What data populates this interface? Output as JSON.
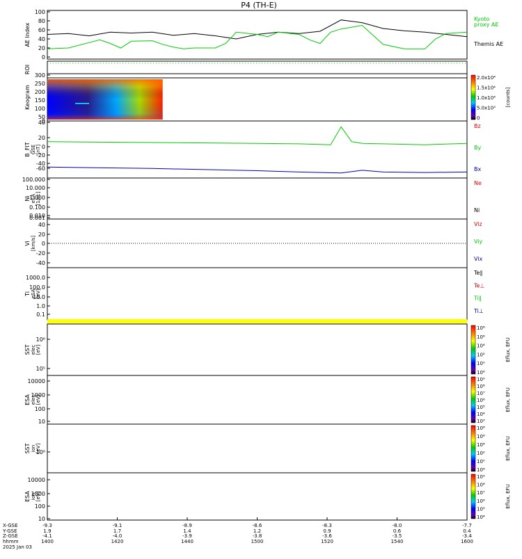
{
  "title": "P4 (TH-E)",
  "colors": {
    "black": "#000000",
    "green": "#00cc00",
    "red": "#dd0000",
    "blue": "#0000aa",
    "bar_yellow": "#ffff00"
  },
  "panels": [
    {
      "id": "ae",
      "label": "AE Index",
      "ticks": [
        "100",
        "80",
        "60",
        "40",
        "20",
        "0"
      ],
      "legend": [
        {
          "text": "Kyoto",
          "color": "#00cc00"
        },
        {
          "text": "proxy AE",
          "color": "#00cc00"
        },
        {
          "text": "Themis AE",
          "color": "#000000"
        }
      ]
    },
    {
      "id": "roi",
      "label": "ROI",
      "ticks": [],
      "legend": []
    },
    {
      "id": "keogram",
      "label": "Keogram",
      "ticks": [
        "300",
        "250",
        "200",
        "150",
        "100",
        "50",
        "0"
      ],
      "colorbar": {
        "ticks": [
          "2.0x10⁴",
          "1.5x10⁴",
          "1.0x10⁴",
          "5.0x10³",
          "0"
        ],
        "unit": "[counts]"
      },
      "legend": []
    },
    {
      "id": "bfit",
      "label": "B_FIT",
      "sublabels": [
        "GSE",
        "[nT]"
      ],
      "ticks": [
        "40",
        "20",
        "0",
        "-20",
        "-40",
        "-60"
      ],
      "legend": [
        {
          "text": "Bz",
          "color": "#dd0000"
        },
        {
          "text": "By",
          "color": "#00cc00"
        },
        {
          "text": "Bx",
          "color": "#0000aa"
        }
      ]
    },
    {
      "id": "ni",
      "label": "Ni",
      "sublabels": [
        "eSA",
        "[1/cc]"
      ],
      "ticks": [
        "100.000",
        "10.000",
        "1.000",
        "0.100",
        "0.010",
        "0.001"
      ],
      "legend": [
        {
          "text": "Ne",
          "color": "#dd0000"
        },
        {
          "text": "Ni",
          "color": "#000000"
        }
      ]
    },
    {
      "id": "vi",
      "label": "Vi",
      "sublabels": [
        "[km/s]"
      ],
      "ticks": [
        "40",
        "20",
        "0",
        "-20",
        "-40"
      ],
      "legend": [
        {
          "text": "Viz",
          "color": "#dd0000"
        },
        {
          "text": "Viy",
          "color": "#00cc00"
        },
        {
          "text": "Vix",
          "color": "#0000aa"
        }
      ]
    },
    {
      "id": "ti",
      "label": "Ti",
      "sublabels": [
        "eSA",
        "[eV]"
      ],
      "ticks": [
        "1000.0",
        "100.0",
        "10.0",
        "1.0",
        "0.1"
      ],
      "legend": [
        {
          "text": "Te∥",
          "color": "#000000"
        },
        {
          "text": "Te⊥",
          "color": "#dd0000"
        },
        {
          "text": "Ti∥",
          "color": "#00cc00"
        },
        {
          "text": "Ti⊥",
          "color": "#0000aa"
        }
      ]
    },
    {
      "id": "sst_e",
      "label": "SST",
      "sublabels": [
        "elec",
        "[eV]"
      ],
      "ticks": [
        "10⁶",
        "10⁵"
      ],
      "colorbar": {
        "ticks": [
          "10⁸",
          "10⁶",
          "10⁴",
          "10²",
          "10⁰",
          "10⁶"
        ],
        "unit": "Eflux, EFU"
      },
      "legend": []
    },
    {
      "id": "esa_e",
      "label": "ESA",
      "sublabels": [
        "elec",
        "[eV]"
      ],
      "ticks": [
        "10000",
        "1000",
        "100",
        "10"
      ],
      "colorbar": {
        "ticks": [
          "10⁹",
          "10⁸",
          "10⁷",
          "10⁶",
          "10⁵",
          "10⁴",
          "10³"
        ],
        "unit": "Eflux, EFU"
      },
      "legend": []
    },
    {
      "id": "sst_i",
      "label": "SST",
      "sublabels": [
        "ion",
        "[eV]"
      ],
      "ticks": [
        "10⁶"
      ],
      "colorbar": {
        "ticks": [
          "10⁸",
          "10⁶",
          "10⁴",
          "10²",
          "10⁰",
          "10⁶"
        ],
        "unit": "Eflux, EFU"
      },
      "legend": []
    },
    {
      "id": "esa_i",
      "label": "ESA",
      "sublabels": [
        "ion",
        "[eV]"
      ],
      "ticks": [
        "10000",
        "1000",
        "100",
        "10"
      ],
      "colorbar": {
        "ticks": [
          "10⁹",
          "10⁸",
          "10⁷",
          "10⁶",
          "10⁵",
          "10⁴"
        ],
        "unit": "Eflux, EFU"
      },
      "legend": []
    }
  ],
  "x_axis": {
    "row_labels": [
      "X-GSE",
      "Y-GSE",
      "Z-GSE",
      "hhmm",
      "2025 Jan 03"
    ],
    "columns": [
      [
        "-9.3",
        "1.9",
        "-4.1",
        "1400"
      ],
      [
        "-9.1",
        "1.7",
        "-4.0",
        "1420"
      ],
      [
        "-8.9",
        "1.4",
        "-3.9",
        "1440"
      ],
      [
        "-8.6",
        "1.2",
        "-3.8",
        "1500"
      ],
      [
        "-8.3",
        "0.9",
        "-3.6",
        "1520"
      ],
      [
        "-8.0",
        "0.6",
        "-3.5",
        "1540"
      ],
      [
        "-7.7",
        "0.4",
        "-3.4",
        "1600"
      ]
    ]
  },
  "chart_data": [
    {
      "type": "line",
      "title": "",
      "ylabel": "AE Index",
      "x_unit": "hhmm",
      "xlim": [
        1400,
        1600
      ],
      "ylim": [
        0,
        100
      ],
      "series": [
        {
          "name": "Themis AE",
          "x": [
            0,
            10,
            20,
            30,
            40,
            50,
            60,
            70,
            80,
            90,
            100,
            110,
            120,
            130,
            140,
            150,
            160,
            170,
            180,
            190,
            200
          ],
          "values": [
            50,
            52,
            47,
            55,
            53,
            55,
            48,
            52,
            47,
            40,
            50,
            55,
            52,
            57,
            82,
            76,
            63,
            58,
            55,
            50,
            45
          ]
        },
        {
          "name": "Kyoto proxy AE",
          "x": [
            0,
            10,
            20,
            25,
            30,
            35,
            40,
            50,
            55,
            60,
            65,
            70,
            80,
            85,
            90,
            100,
            105,
            110,
            120,
            125,
            130,
            135,
            140,
            150,
            160,
            170,
            180,
            185,
            190,
            200
          ],
          "values": [
            18,
            20,
            32,
            38,
            30,
            20,
            35,
            36,
            28,
            22,
            18,
            20,
            20,
            30,
            55,
            50,
            45,
            55,
            50,
            38,
            30,
            55,
            62,
            70,
            28,
            18,
            18,
            40,
            52,
            55
          ]
        }
      ]
    },
    {
      "type": "line",
      "title": "",
      "ylabel": "B_FIT GSE [nT]",
      "ylim": [
        -70,
        45
      ],
      "series": [
        {
          "name": "By",
          "x": [
            0,
            50,
            100,
            120,
            135,
            140,
            145,
            150,
            160,
            180,
            200
          ],
          "values": [
            2,
            0,
            -2,
            -3,
            -5,
            35,
            2,
            -2,
            -3,
            -5,
            -2
          ]
        },
        {
          "name": "Bx",
          "x": [
            0,
            50,
            100,
            120,
            140,
            150,
            160,
            180,
            200
          ],
          "values": [
            -55,
            -58,
            -63,
            -66,
            -68,
            -62,
            -66,
            -67,
            -66
          ]
        }
      ]
    },
    {
      "type": "heatmap",
      "title": "",
      "ylabel": "Keogram",
      "ylim": [
        0,
        300
      ],
      "x_coverage": [
        1400,
        1445
      ],
      "colorbar_range": [
        0,
        20000
      ]
    }
  ]
}
